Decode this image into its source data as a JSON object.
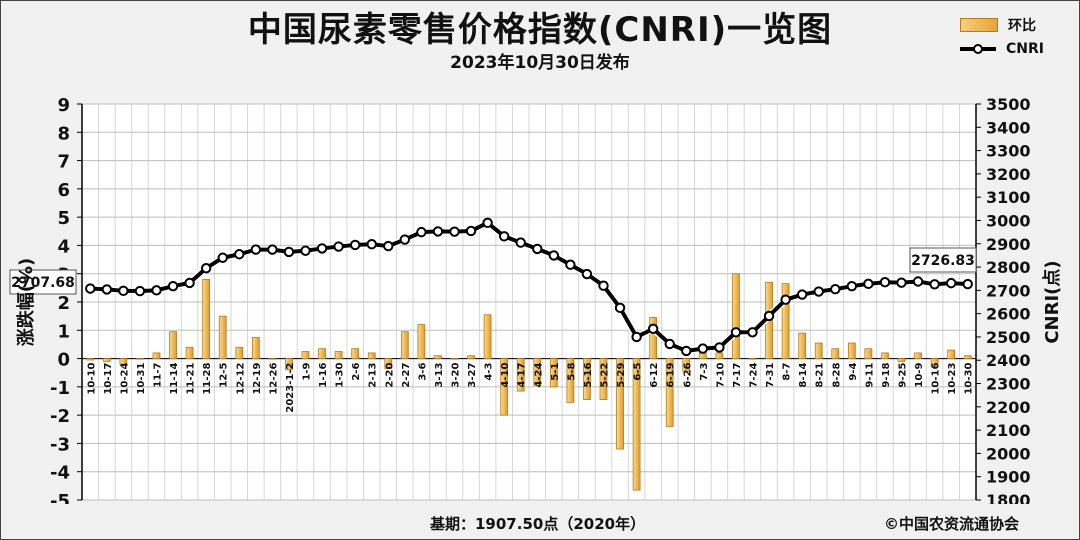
{
  "title": "中国尿素零售价格指数(CNRI)一览图",
  "subtitle": "2023年10月30日发布",
  "legend": {
    "bar_label": "环比",
    "line_label": "CNRI"
  },
  "footer": {
    "base": "基期：1907.50点（2020年）",
    "copyright": "©中国农资流通协会"
  },
  "colors": {
    "bar_fill_light": "#f8dd8e",
    "bar_fill_dark": "#e39a2c",
    "bar_stroke": "#b9791c",
    "line": "#000000",
    "grid": "#bdbdbd",
    "plot_bg": "#ffffff"
  },
  "chart_data": {
    "type": "bar+line",
    "categories": [
      "10-10",
      "10-17",
      "10-24",
      "10-31",
      "11-7",
      "11-14",
      "11-21",
      "11-28",
      "12-5",
      "12-12",
      "12-19",
      "12-26",
      "2023-1-2",
      "1-9",
      "1-16",
      "1-30",
      "2-6",
      "2-13",
      "2-20",
      "2-27",
      "3-6",
      "3-13",
      "3-20",
      "3-27",
      "4-3",
      "4-10",
      "4-17",
      "4-24",
      "5-1",
      "5-8",
      "5-16",
      "5-22",
      "5-29",
      "6-5",
      "6-12",
      "6-19",
      "6-26",
      "7-3",
      "7-10",
      "7-17",
      "7-24",
      "7-31",
      "8-7",
      "8-14",
      "8-21",
      "8-28",
      "9-4",
      "9-11",
      "9-18",
      "9-25",
      "10-9",
      "10-16",
      "10-23",
      "10-30"
    ],
    "series": [
      {
        "name": "环比",
        "axis": "left",
        "unit": "%",
        "values": [
          -0.05,
          -0.1,
          -0.2,
          0.0,
          0.2,
          0.95,
          0.4,
          2.8,
          1.5,
          0.4,
          0.75,
          0.0,
          -0.4,
          0.25,
          0.35,
          0.25,
          0.35,
          0.2,
          -0.35,
          0.95,
          1.2,
          0.1,
          0.0,
          0.1,
          1.55,
          -2.0,
          -1.15,
          -0.95,
          -1.0,
          -1.55,
          -1.45,
          -1.45,
          -3.2,
          -4.65,
          1.45,
          -2.4,
          -0.45,
          0.2,
          0.2,
          3.0,
          0.0,
          2.7,
          2.65,
          0.9,
          0.55,
          0.35,
          0.55,
          0.35,
          0.2,
          -0.1,
          0.2,
          -0.3,
          0.3,
          0.1
        ]
      },
      {
        "name": "CNRI",
        "axis": "right",
        "unit": "点",
        "values": [
          2707.68,
          2704,
          2698,
          2697,
          2700,
          2718,
          2732,
          2795,
          2840,
          2855,
          2875,
          2875,
          2865,
          2870,
          2880,
          2888,
          2895,
          2898,
          2890,
          2918,
          2950,
          2953,
          2952,
          2955,
          2990,
          2932,
          2905,
          2878,
          2850,
          2810,
          2770,
          2720,
          2625,
          2500,
          2535,
          2470,
          2440,
          2450,
          2455,
          2520,
          2520,
          2590,
          2660,
          2682,
          2695,
          2705,
          2718,
          2728,
          2735,
          2733,
          2738,
          2726,
          2731,
          2726.83
        ]
      }
    ],
    "left_axis": {
      "label": "涨跌幅(%)",
      "ylim": [
        -5,
        9
      ],
      "ticks": [
        "9",
        "8",
        "7",
        "6",
        "5",
        "4",
        "3",
        "2",
        "1",
        "0",
        "-1",
        "-2",
        "-3",
        "-4",
        "-5"
      ]
    },
    "right_axis": {
      "label": "CNRI(点)",
      "ylim": [
        1800,
        3500
      ],
      "ticks": [
        "3500",
        "3400",
        "3300",
        "3200",
        "3100",
        "3000",
        "2900",
        "2800",
        "2700",
        "2600",
        "2500",
        "2400",
        "2300",
        "2200",
        "2100",
        "2000",
        "1900",
        "1800"
      ]
    },
    "callouts": {
      "first": "2707.68",
      "last": "2726.83"
    },
    "grid": true,
    "legend_position": "top-right"
  }
}
